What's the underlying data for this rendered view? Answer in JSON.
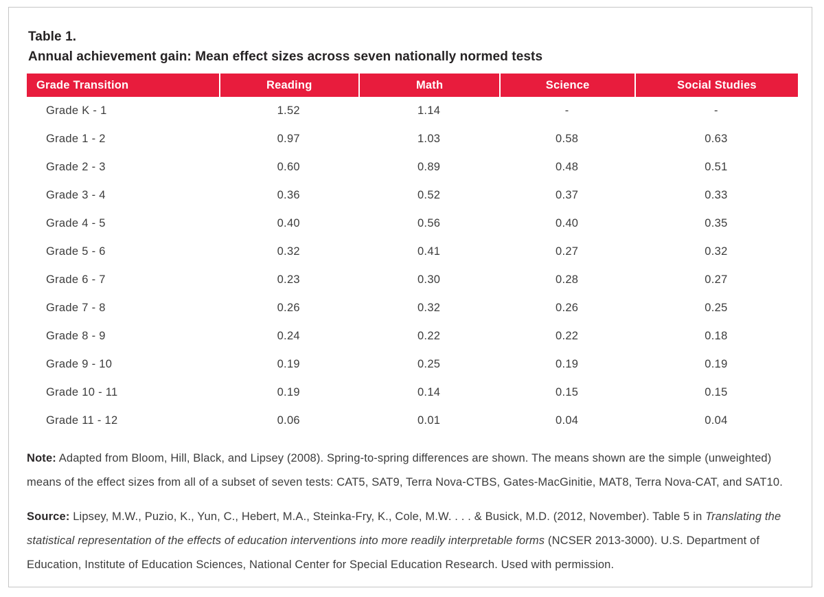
{
  "colors": {
    "header_bg": "#E81C3D",
    "header_text": "#FFFFFF",
    "title_text": "#262324",
    "body_text": "#3C3C3C",
    "border": "#C5C5C5"
  },
  "table": {
    "label": "Table 1.",
    "title": "Annual achievement gain: Mean effect sizes across seven nationally normed tests",
    "columns": [
      "Grade Transition",
      "Reading",
      "Math",
      "Science",
      "Social Studies"
    ],
    "rows": [
      [
        "Grade K - 1",
        "1.52",
        "1.14",
        "-",
        "-"
      ],
      [
        "Grade 1 - 2",
        "0.97",
        "1.03",
        "0.58",
        "0.63"
      ],
      [
        "Grade 2 - 3",
        "0.60",
        "0.89",
        "0.48",
        "0.51"
      ],
      [
        "Grade 3 - 4",
        "0.36",
        "0.52",
        "0.37",
        "0.33"
      ],
      [
        "Grade 4 - 5",
        "0.40",
        "0.56",
        "0.40",
        "0.35"
      ],
      [
        "Grade 5 - 6",
        "0.32",
        "0.41",
        "0.27",
        "0.32"
      ],
      [
        "Grade 6 - 7",
        "0.23",
        "0.30",
        "0.28",
        "0.27"
      ],
      [
        "Grade 7 - 8",
        "0.26",
        "0.32",
        "0.26",
        "0.25"
      ],
      [
        "Grade 8 - 9",
        "0.24",
        "0.22",
        "0.22",
        "0.18"
      ],
      [
        "Grade 9 - 10",
        "0.19",
        "0.25",
        "0.19",
        "0.19"
      ],
      [
        "Grade 10 - 11",
        "0.19",
        "0.14",
        "0.15",
        "0.15"
      ],
      [
        "Grade 11 - 12",
        "0.06",
        "0.01",
        "0.04",
        "0.04"
      ]
    ]
  },
  "note": {
    "label": "Note:",
    "text": " Adapted from Bloom, Hill, Black, and Lipsey (2008). Spring-to-spring differences are shown. The means shown are the simple (unweighted) means of the effect sizes from all of a subset of seven tests: CAT5, SAT9, Terra Nova-CTBS, Gates-MacGinitie, MAT8, Terra Nova-CAT, and SAT10."
  },
  "source": {
    "label": "Source:",
    "text_before_italic": " Lipsey, M.W., Puzio, K., Yun, C., Hebert, M.A., Steinka-Fry, K., Cole, M.W. . . .  & Busick, M.D. (2012, November). Table 5 in ",
    "italic_title": "Translating the statistical representation of the effects of education interventions into more readily interpretable forms",
    "text_after_italic": " (NCSER 2013-3000). U.S. Department of Education, Institute of Education Sciences, National Center for Special Education Research. Used with permission."
  }
}
